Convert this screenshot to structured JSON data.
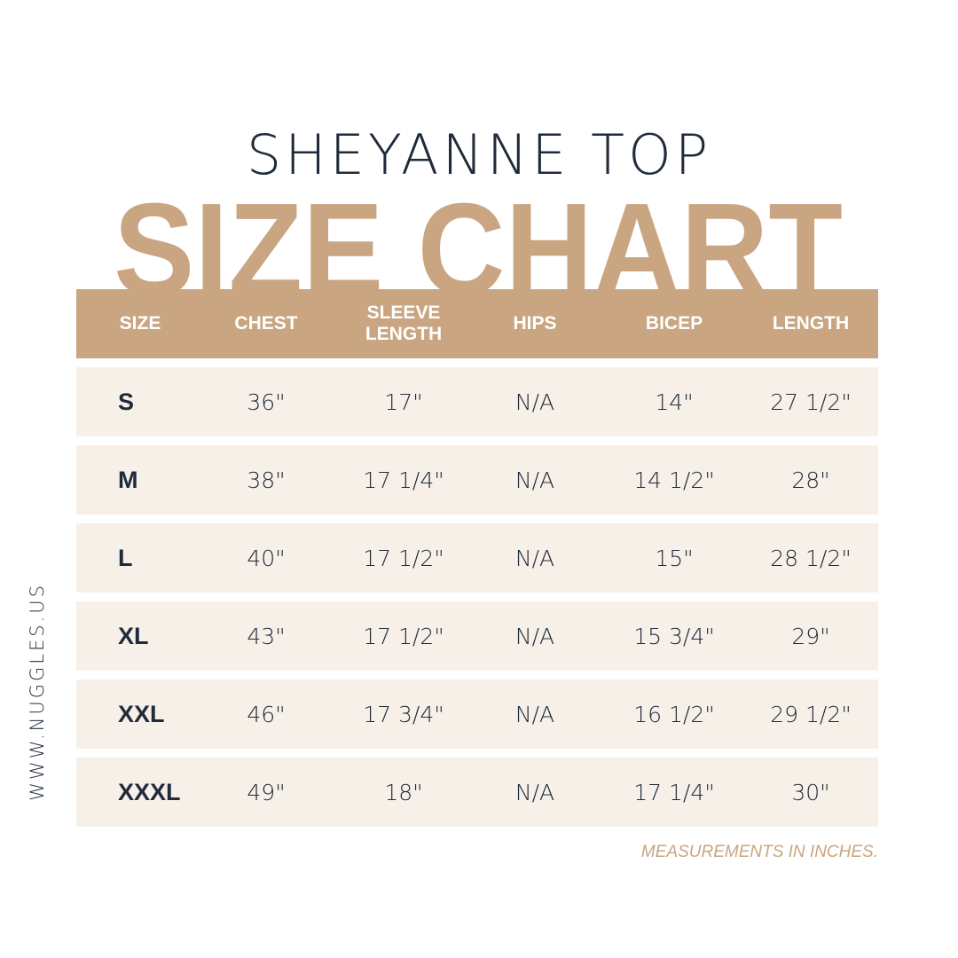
{
  "product_title": "SHEYANNE TOP",
  "chart_title": "SIZE CHART",
  "colors": {
    "accent": "#C9A582",
    "row_bg": "#F7F0E8",
    "text": "#1F2B3A"
  },
  "table": {
    "headers": [
      "SIZE",
      "CHEST",
      "SLEEVE LENGTH",
      "HIPS",
      "BICEP",
      "LENGTH"
    ],
    "rows": [
      [
        "S",
        "36\"",
        "17\"",
        "N/A",
        "14\"",
        "27 1/2\""
      ],
      [
        "M",
        "38\"",
        "17 1/4\"",
        "N/A",
        "14 1/2\"",
        "28\""
      ],
      [
        "L",
        "40\"",
        "17 1/2\"",
        "N/A",
        "15\"",
        "28 1/2\""
      ],
      [
        "XL",
        "43\"",
        "17 1/2\"",
        "N/A",
        "15 3/4\"",
        "29\""
      ],
      [
        "XXL",
        "46\"",
        "17 3/4\"",
        "N/A",
        "16 1/2\"",
        "29 1/2\""
      ],
      [
        "XXXL",
        "49\"",
        "18\"",
        "N/A",
        "17 1/4\"",
        "30\""
      ]
    ]
  },
  "website": "WWW.NUGGLES.US",
  "footnote": "MEASUREMENTS IN INCHES."
}
